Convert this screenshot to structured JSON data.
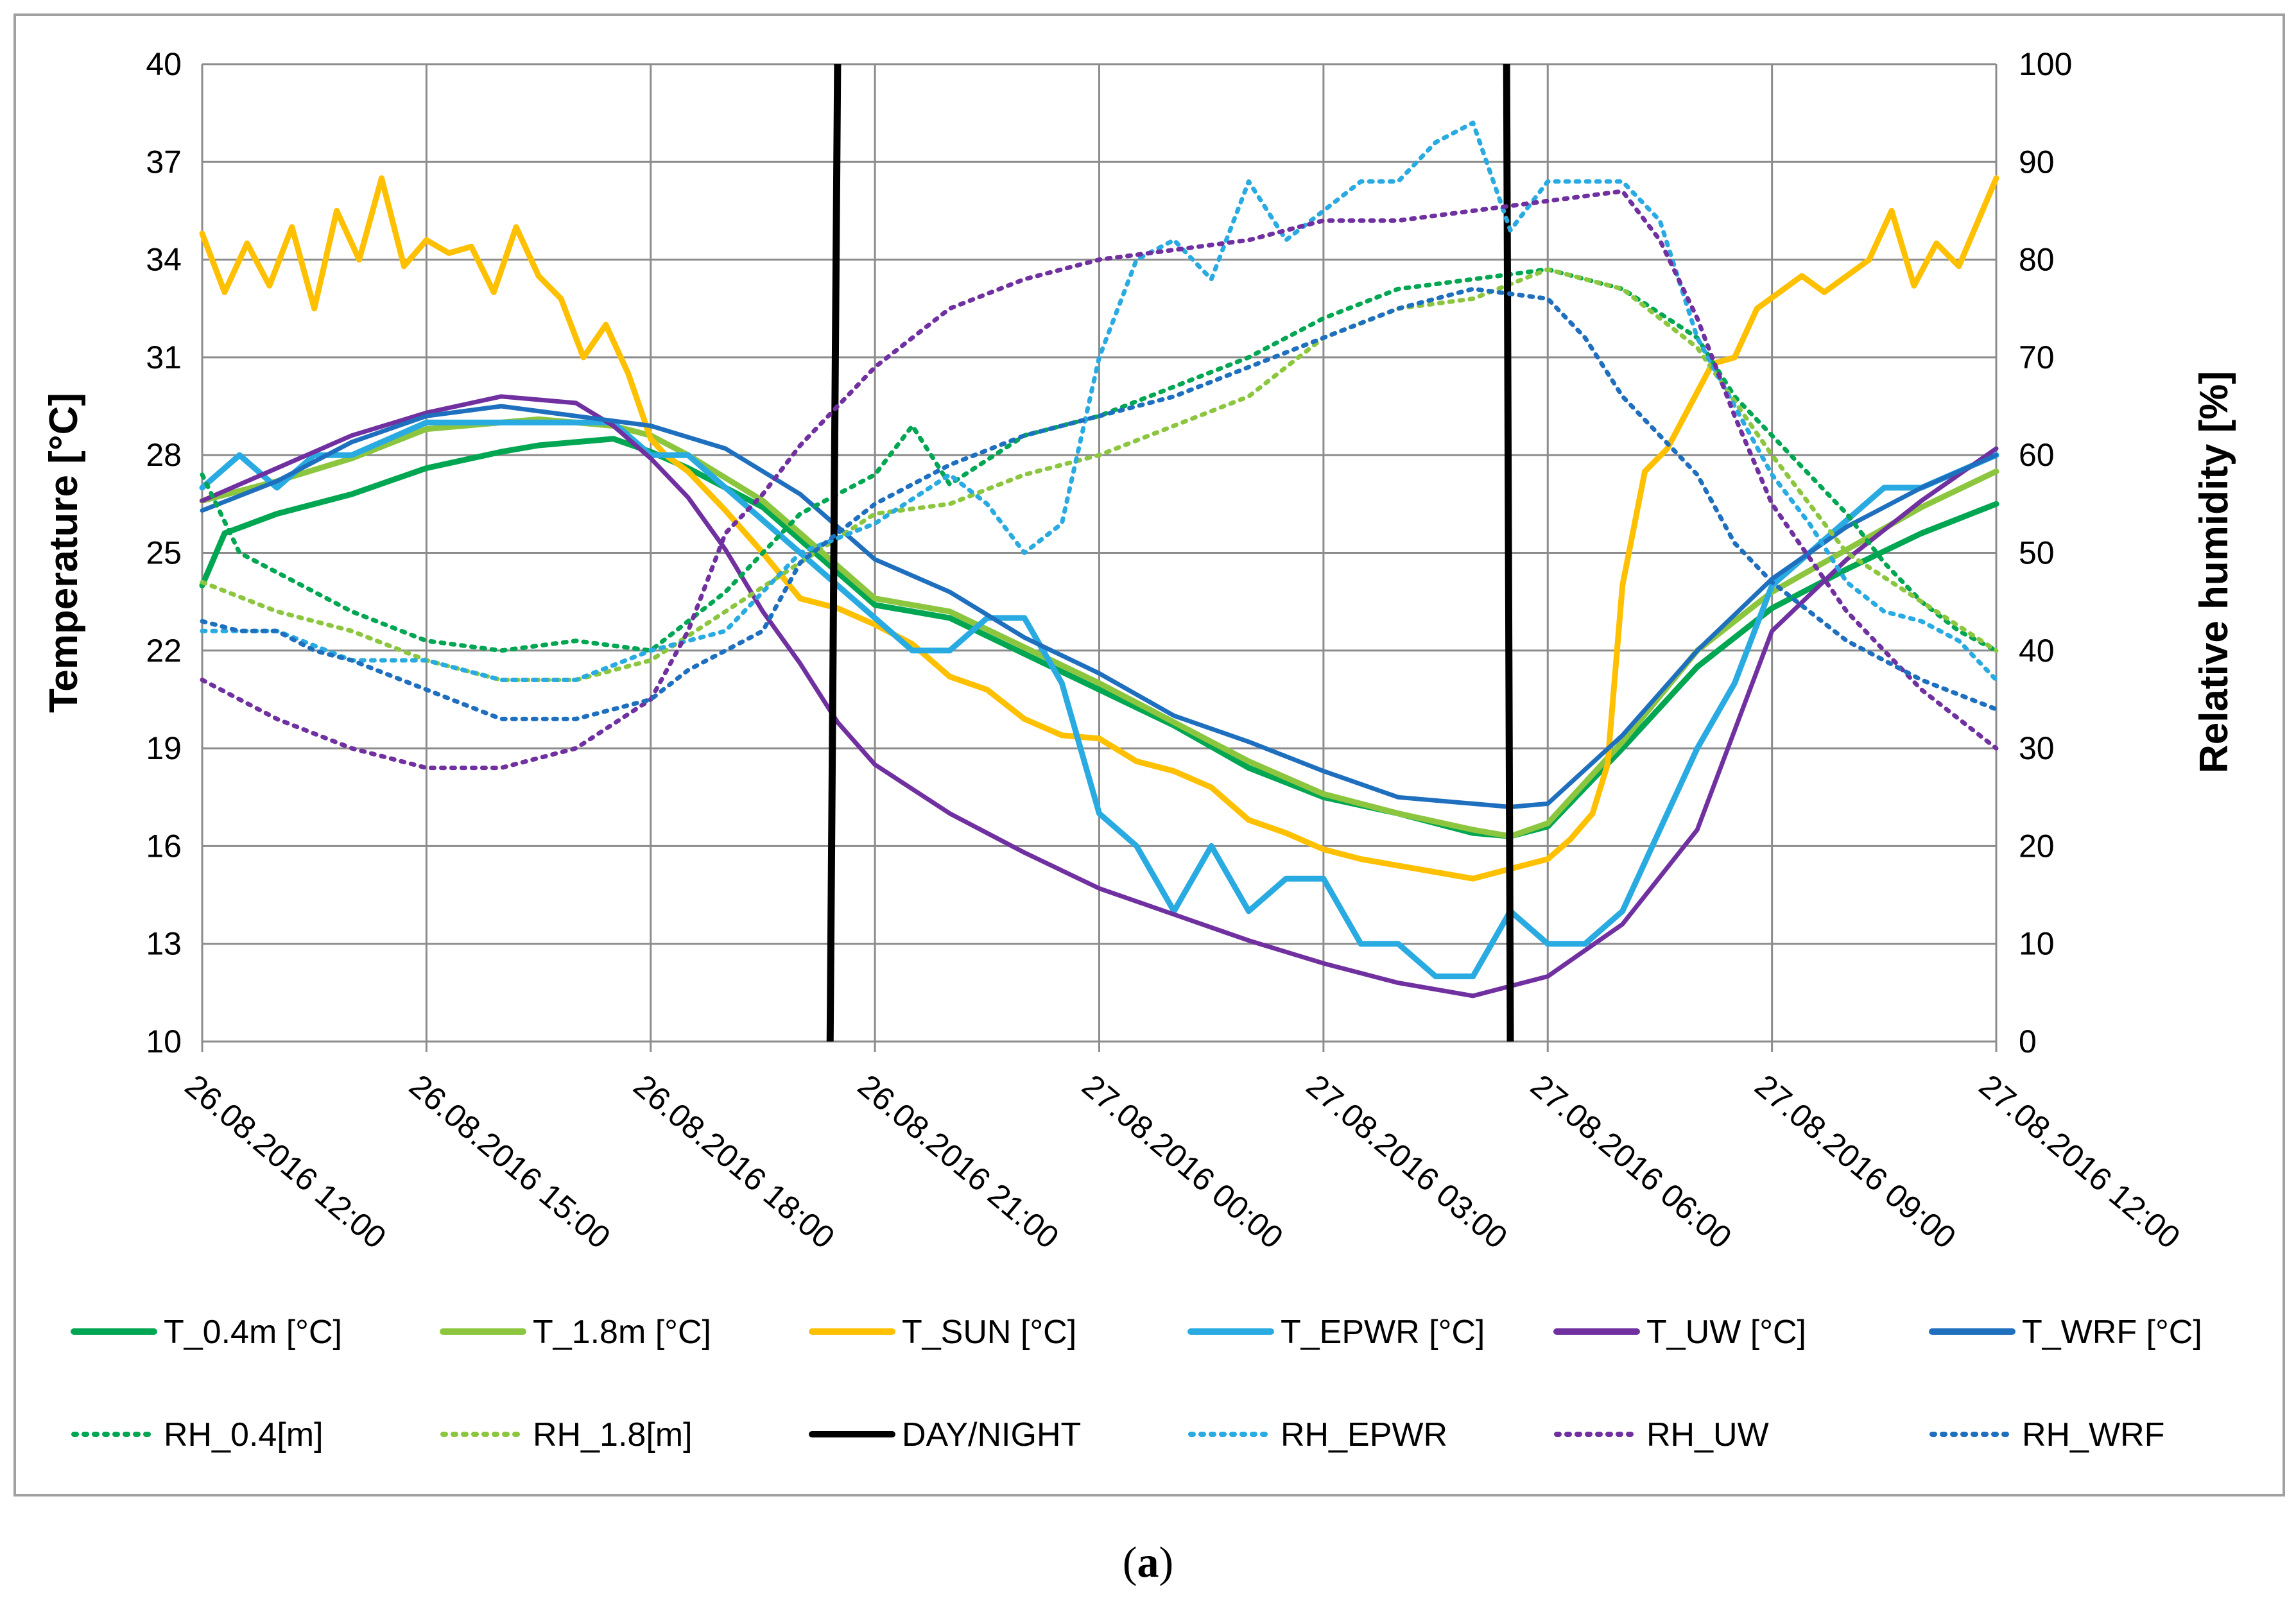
{
  "caption": {
    "open": "(",
    "letter": "a",
    "close": ")"
  },
  "chart_data": {
    "type": "line",
    "title": "",
    "xlabel": "",
    "ylabel": "Temperature [°C]",
    "y2label": "Relative humidity [%]",
    "ylim": [
      10,
      40
    ],
    "y2lim": [
      0,
      100
    ],
    "xlim": [
      0,
      24
    ],
    "x_unit": "hours since 26.08.2016 12:00",
    "yticks": [
      10,
      13,
      16,
      19,
      22,
      25,
      28,
      31,
      34,
      37,
      40
    ],
    "y2ticks": [
      0,
      10,
      20,
      30,
      40,
      50,
      60,
      70,
      80,
      90,
      100
    ],
    "xticks": [
      0,
      3,
      6,
      9,
      12,
      15,
      18,
      21,
      24
    ],
    "xtick_labels": [
      "26.08.2016 12:00",
      "26.08.2016 15:00",
      "26.08.2016 18:00",
      "26.08.2016 21:00",
      "27.08.2016 00:00",
      "27.08.2016 03:00",
      "27.08.2016 06:00",
      "27.08.2016 09:00",
      "27.08.2016 12:00"
    ],
    "grid": true,
    "legend_position": "bottom",
    "series": [
      {
        "name": "T_0.4m [°C]",
        "axis": "left",
        "color": "#00A651",
        "style": "solid",
        "width": 9,
        "x": [
          0,
          0.3,
          1,
          2,
          3,
          4,
          4.5,
          5,
          5.5,
          6,
          6.5,
          7,
          7.5,
          8,
          9,
          10,
          11,
          12,
          13,
          14,
          15,
          16,
          17,
          17.5,
          18,
          19,
          20,
          21,
          22,
          23,
          24
        ],
        "y": [
          24.0,
          25.6,
          26.2,
          26.8,
          27.6,
          28.1,
          28.3,
          28.4,
          28.5,
          28.1,
          27.6,
          27.0,
          26.4,
          25.4,
          23.4,
          23.0,
          21.9,
          20.8,
          19.7,
          18.4,
          17.5,
          17.0,
          16.4,
          16.3,
          16.6,
          19.0,
          21.5,
          23.3,
          24.5,
          25.6,
          26.5
        ]
      },
      {
        "name": "T_1.8m [°C]",
        "axis": "left",
        "color": "#8CC63F",
        "style": "solid",
        "width": 9,
        "x": [
          0,
          1,
          2,
          3,
          4,
          4.5,
          5,
          5.5,
          6,
          6.5,
          7,
          7.5,
          8,
          9,
          10,
          11,
          12,
          13,
          14,
          15,
          16,
          17,
          17.5,
          18,
          19,
          20,
          21,
          22,
          23,
          24
        ],
        "y": [
          26.6,
          27.2,
          27.9,
          28.8,
          29.0,
          29.1,
          29.0,
          28.9,
          28.6,
          28.0,
          27.3,
          26.6,
          25.6,
          23.6,
          23.2,
          22.1,
          21.0,
          19.8,
          18.6,
          17.6,
          17.0,
          16.5,
          16.3,
          16.7,
          19.2,
          22.0,
          23.8,
          25.1,
          26.4,
          27.5
        ]
      },
      {
        "name": "T_SUN [°C]",
        "axis": "left",
        "color": "#FFC000",
        "style": "solid",
        "width": 9,
        "x": [
          0,
          0.3,
          0.6,
          0.9,
          1.2,
          1.5,
          1.8,
          2.1,
          2.4,
          2.7,
          3.0,
          3.3,
          3.6,
          3.9,
          4.2,
          4.5,
          4.8,
          5.1,
          5.4,
          5.7,
          6.0,
          6.2,
          6.5,
          7.0,
          7.5,
          8.0,
          8.5,
          9.0,
          9.5,
          10.0,
          10.5,
          11.0,
          11.5,
          12.0,
          12.5,
          13.0,
          13.5,
          14.0,
          14.5,
          15.0,
          15.5,
          16.0,
          16.5,
          17.0,
          17.5,
          18.0,
          18.3,
          18.6,
          18.8,
          19.0,
          19.3,
          19.6,
          19.9,
          20.2,
          20.5,
          20.8,
          21.1,
          21.4,
          21.7,
          22.0,
          22.3,
          22.6,
          22.9,
          23.2,
          23.5,
          24.0
        ],
        "y": [
          34.8,
          33.0,
          34.5,
          33.2,
          35.0,
          32.5,
          35.5,
          34.0,
          36.5,
          33.8,
          34.6,
          34.2,
          34.4,
          33.0,
          35.0,
          33.5,
          32.8,
          31.0,
          32.0,
          30.5,
          28.5,
          28.0,
          27.5,
          26.3,
          25.0,
          23.6,
          23.3,
          22.8,
          22.2,
          21.2,
          20.8,
          19.9,
          19.4,
          19.3,
          18.6,
          18.3,
          17.8,
          16.8,
          16.4,
          15.9,
          15.6,
          15.4,
          15.2,
          15.0,
          15.3,
          15.6,
          16.2,
          17.0,
          18.5,
          24.0,
          27.5,
          28.2,
          29.5,
          30.8,
          31.0,
          32.5,
          33.0,
          33.5,
          33.0,
          33.5,
          34.0,
          35.5,
          33.2,
          34.5,
          33.8,
          36.5
        ]
      },
      {
        "name": "T_EPWR [°C]",
        "axis": "left",
        "color": "#29ABE2",
        "style": "solid",
        "width": 9,
        "x": [
          0,
          0.5,
          1,
          1.5,
          2,
          3,
          4,
          5,
          5.5,
          6,
          6.5,
          7,
          7.5,
          8,
          8.5,
          9,
          9.5,
          10,
          10.5,
          11,
          11.5,
          12,
          12.5,
          13,
          13.5,
          14,
          14.5,
          15,
          15.5,
          16,
          16.5,
          17,
          17.5,
          18,
          18.5,
          19,
          19.5,
          20,
          20.5,
          21,
          21.5,
          22,
          22.5,
          23,
          23.5,
          24
        ],
        "y": [
          27.0,
          28.0,
          27.0,
          28.0,
          28.0,
          29.0,
          29.0,
          29.0,
          29.0,
          28.0,
          28.0,
          27.0,
          26.0,
          25.0,
          24.0,
          23.0,
          22.0,
          22.0,
          23.0,
          23.0,
          21.0,
          17.0,
          16.0,
          14.0,
          16.0,
          14.0,
          15.0,
          15.0,
          13.0,
          13.0,
          12.0,
          12.0,
          14.0,
          13.0,
          13.0,
          14.0,
          16.5,
          19.0,
          21.0,
          24.0,
          25.0,
          26.0,
          27.0,
          27.0,
          27.5,
          28.0
        ]
      },
      {
        "name": "T_UW [°C]",
        "axis": "left",
        "color": "#7030A0",
        "style": "solid",
        "width": 7,
        "x": [
          0,
          1,
          2,
          3,
          4,
          4.5,
          5,
          5.5,
          6,
          6.5,
          7,
          7.5,
          8,
          8.5,
          9,
          10,
          11,
          12,
          13,
          14,
          15,
          16,
          17,
          18,
          19,
          20,
          21,
          22,
          23,
          24
        ],
        "y": [
          26.6,
          27.6,
          28.6,
          29.3,
          29.8,
          29.7,
          29.6,
          28.9,
          27.9,
          26.7,
          25.1,
          23.2,
          21.6,
          19.8,
          18.5,
          17.0,
          15.8,
          14.7,
          13.9,
          13.1,
          12.4,
          11.8,
          11.4,
          12.0,
          13.6,
          16.5,
          22.6,
          24.8,
          26.6,
          28.2
        ]
      },
      {
        "name": "T_WRF [°C]",
        "axis": "left",
        "color": "#1F6FBF",
        "style": "solid",
        "width": 7,
        "x": [
          0,
          1,
          2,
          3,
          4,
          5,
          6,
          7,
          8,
          9,
          10,
          11,
          12,
          13,
          14,
          15,
          16,
          17,
          17.5,
          18,
          19,
          20,
          21,
          22,
          23,
          24
        ],
        "y": [
          26.3,
          27.2,
          28.4,
          29.2,
          29.5,
          29.2,
          28.9,
          28.2,
          26.8,
          24.8,
          23.8,
          22.4,
          21.3,
          20.0,
          19.2,
          18.3,
          17.5,
          17.3,
          17.2,
          17.3,
          19.4,
          22.0,
          24.2,
          25.8,
          27.0,
          28.0
        ]
      },
      {
        "name": "RH_0.4[m]",
        "axis": "right",
        "color": "#00A651",
        "style": "dotted",
        "width": 7,
        "x": [
          0,
          0.5,
          1,
          1.5,
          2,
          3,
          4,
          5,
          6,
          7,
          8,
          9,
          9.5,
          10,
          11,
          12,
          13,
          14,
          15,
          16,
          17,
          18,
          19,
          20,
          20.5,
          21,
          21.5,
          22,
          22.5,
          23,
          23.5,
          24
        ],
        "y": [
          58,
          50,
          48,
          46,
          44,
          41,
          40,
          41,
          40,
          46,
          54,
          58,
          63,
          57,
          62,
          64,
          67,
          70,
          74,
          77,
          78,
          79,
          77,
          72,
          66,
          62,
          58,
          54,
          49,
          45,
          42,
          40
        ]
      },
      {
        "name": "RH_1.8[m]",
        "axis": "right",
        "color": "#8CC63F",
        "style": "dotted",
        "width": 7,
        "x": [
          0,
          1,
          2,
          3,
          4,
          5,
          6,
          7,
          8,
          9,
          10,
          11,
          12,
          13,
          14,
          15,
          16,
          17,
          18,
          19,
          20,
          21,
          22,
          23,
          24
        ],
        "y": [
          47,
          44,
          42,
          39,
          37,
          37,
          39,
          44,
          49,
          54,
          55,
          58,
          60,
          63,
          66,
          72,
          75,
          76,
          79,
          77,
          71,
          60,
          50,
          45,
          40
        ]
      },
      {
        "name": "DAY/NIGHT",
        "axis": "left",
        "color": "#000000",
        "style": "solid",
        "width": 11,
        "segments": [
          {
            "x": [
              8.4,
              8.5
            ],
            "y": [
              10,
              40
            ]
          },
          {
            "x": [
              17.5,
              17.45
            ],
            "y": [
              10,
              40
            ]
          }
        ]
      },
      {
        "name": "RH_EPWR",
        "axis": "right",
        "color": "#29ABE2",
        "style": "dotted",
        "width": 7,
        "x": [
          0,
          1,
          2,
          3,
          4,
          5,
          6,
          7,
          8,
          9,
          10,
          10.5,
          11,
          11.5,
          12,
          12.5,
          13,
          13.5,
          14,
          14.5,
          15,
          15.5,
          16,
          16.5,
          17,
          17.5,
          18,
          18.5,
          19,
          19.5,
          20,
          20.5,
          21,
          21.5,
          22,
          22.5,
          23,
          23.5,
          24
        ],
        "y": [
          42,
          42,
          39,
          39,
          37,
          37,
          40,
          42,
          50,
          53,
          58,
          55,
          50,
          53,
          70,
          80,
          82,
          78,
          88,
          82,
          85,
          88,
          88,
          92,
          94,
          83,
          88,
          88,
          88,
          84,
          72,
          65,
          58,
          53,
          47,
          44,
          43,
          41,
          37
        ]
      },
      {
        "name": "RH_UW",
        "axis": "right",
        "color": "#7030A0",
        "style": "dotted",
        "width": 7,
        "x": [
          0,
          1,
          2,
          3,
          4,
          5,
          6,
          6.5,
          7,
          7.5,
          8,
          9,
          10,
          11,
          12,
          13,
          14,
          15,
          16,
          17,
          18,
          19,
          19.5,
          20,
          20.5,
          21,
          22,
          23,
          24
        ],
        "y": [
          37,
          33,
          30,
          28,
          28,
          30,
          35,
          42,
          52,
          56,
          61,
          69,
          75,
          78,
          80,
          81,
          82,
          84,
          84,
          85,
          86,
          87,
          82,
          74,
          64,
          55,
          44,
          36,
          30
        ]
      },
      {
        "name": "RH_WRF",
        "axis": "right",
        "color": "#1F6FBF",
        "style": "dotted",
        "width": 7,
        "x": [
          0,
          0.5,
          1,
          1.5,
          2,
          3,
          4,
          5,
          6,
          6.5,
          7,
          7.5,
          8,
          9,
          10,
          11,
          12,
          13,
          14,
          15,
          16,
          17,
          18,
          18.5,
          19,
          20,
          20.5,
          21,
          22,
          23,
          24
        ],
        "y": [
          43,
          42,
          42,
          40,
          39,
          36,
          33,
          33,
          35,
          38,
          40,
          42,
          49,
          55,
          59,
          62,
          64,
          66,
          69,
          72,
          75,
          77,
          76,
          72,
          66,
          58,
          51,
          47,
          41,
          37,
          34
        ]
      }
    ]
  }
}
